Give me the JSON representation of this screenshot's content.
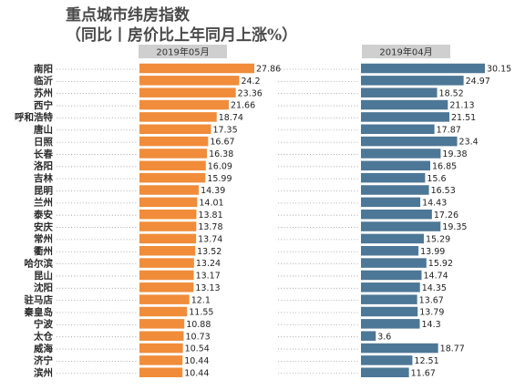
{
  "title": "重点城市纬房指数",
  "subtitle": "（同比丨房价比上年同月上涨%）",
  "chart_data": [
    {
      "type": "bar",
      "orientation": "horizontal",
      "header": "2019年05月",
      "color": "#f08c3a",
      "categories": [
        "南阳",
        "临沂",
        "苏州",
        "西宁",
        "呼和浩特",
        "唐山",
        "日照",
        "长春",
        "洛阳",
        "吉林",
        "昆明",
        "兰州",
        "泰安",
        "安庆",
        "常州",
        "衢州",
        "哈尔滨",
        "昆山",
        "沈阳",
        "驻马店",
        "秦皇岛",
        "宁波",
        "太仓",
        "威海",
        "济宁",
        "滨州"
      ],
      "values": [
        27.86,
        24.2,
        23.36,
        21.66,
        18.74,
        17.35,
        16.67,
        16.38,
        16.09,
        15.99,
        14.39,
        14.01,
        13.81,
        13.78,
        13.74,
        13.52,
        13.24,
        13.17,
        13.13,
        12.1,
        11.55,
        10.88,
        10.73,
        10.54,
        10.44,
        10.44
      ],
      "value_labels": [
        "27.86",
        "24.2",
        "23.36",
        "21.66",
        "18.74",
        "17.35",
        "16.67",
        "16.38",
        "16.09",
        "15.99",
        "14.39",
        "14.01",
        "13.81",
        "13.78",
        "13.74",
        "13.52",
        "13.24",
        "13.17",
        "13.13",
        "12.1",
        "11.55",
        "10.88",
        "10.73",
        "10.54",
        "10.44",
        "10.44"
      ]
    },
    {
      "type": "bar",
      "orientation": "horizontal",
      "header": "2019年04月",
      "color": "#4d7796",
      "categories": [
        "南阳",
        "临沂",
        "苏州",
        "西宁",
        "呼和浩特",
        "唐山",
        "日照",
        "长春",
        "洛阳",
        "吉林",
        "昆明",
        "兰州",
        "泰安",
        "安庆",
        "常州",
        "衢州",
        "哈尔滨",
        "昆山",
        "沈阳",
        "驻马店",
        "秦皇岛",
        "宁波",
        "太仓",
        "威海",
        "济宁",
        "滨州"
      ],
      "values": [
        30.15,
        24.97,
        18.52,
        21.13,
        21.51,
        17.87,
        23.4,
        19.38,
        16.85,
        15.6,
        16.53,
        14.43,
        17.26,
        19.35,
        15.29,
        13.99,
        15.92,
        14.74,
        14.35,
        13.67,
        13.79,
        14.3,
        3.6,
        18.77,
        12.51,
        11.67
      ],
      "value_labels": [
        "30.15",
        "24.97",
        "18.52",
        "21.13",
        "21.51",
        "17.87",
        "23.4",
        "19.38",
        "16.85",
        "15.6",
        "16.53",
        "14.43",
        "17.26",
        "19.35",
        "15.29",
        "13.99",
        "15.92",
        "14.74",
        "14.35",
        "13.67",
        "13.79",
        "14.3",
        "3.6",
        "18.77",
        "12.51",
        "11.67"
      ]
    }
  ],
  "colors": {
    "header_fill": "#cfcfcf",
    "dotted_leader": "#9a9a9a",
    "city_label": "#2b2b2b"
  }
}
